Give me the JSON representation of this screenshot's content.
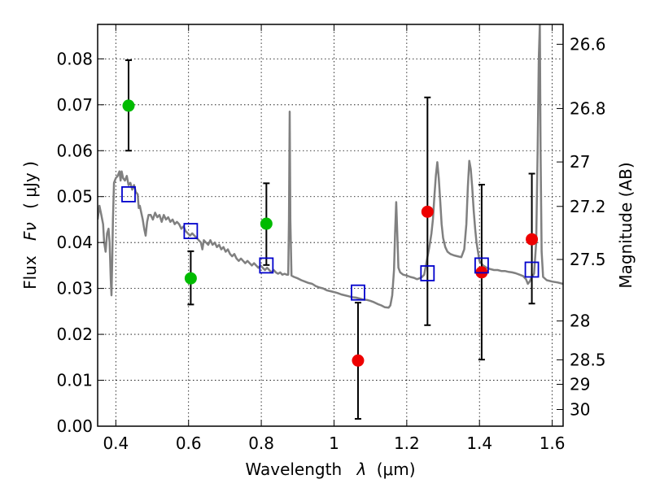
{
  "chart_data": {
    "type": "scatter",
    "xlabel": "Wavelength",
    "xlabel_symbol": "λ",
    "xlabel_unit": "(μm)",
    "ylabel": "Flux",
    "ylabel_symbol": "Fν",
    "ylabel_unit": "( μJy )",
    "ylabel_right": "Magnitude (AB)",
    "xlim": [
      0.35,
      1.63
    ],
    "ylim": [
      0.0,
      0.0875
    ],
    "grid": true,
    "x_ticks": [
      0.4,
      0.6,
      0.8,
      1.0,
      1.2,
      1.4,
      1.6
    ],
    "x_tick_labels": [
      "0.4",
      "0.6",
      "0.8",
      "1",
      "1.2",
      "1.4",
      "1.6"
    ],
    "y_ticks": [
      0.0,
      0.01,
      0.02,
      0.03,
      0.04,
      0.05,
      0.06,
      0.07,
      0.08
    ],
    "y_tick_labels": [
      "0.00",
      "0.01",
      "0.02",
      "0.03",
      "0.04",
      "0.05",
      "0.06",
      "0.07",
      "0.08"
    ],
    "right_ticks": [
      {
        "mag": 26.6,
        "label": "26.6"
      },
      {
        "mag": 26.8,
        "label": "26.8"
      },
      {
        "mag": 27.0,
        "label": "27"
      },
      {
        "mag": 27.2,
        "label": "27.2"
      },
      {
        "mag": 27.5,
        "label": "27.5"
      },
      {
        "mag": 28.0,
        "label": "28"
      },
      {
        "mag": 28.5,
        "label": "28.5"
      },
      {
        "mag": 29.0,
        "label": "29"
      },
      {
        "mag": 30.0,
        "label": "30"
      }
    ],
    "series": [
      {
        "kind": "points",
        "marker": "circle",
        "color": "#00bb00",
        "points": [
          {
            "x": 0.435,
            "y": 0.0698,
            "err_lo": 0.06,
            "err_hi": 0.0797
          },
          {
            "x": 0.606,
            "y": 0.0322,
            "err_lo": 0.0265,
            "err_hi": 0.0381
          },
          {
            "x": 0.814,
            "y": 0.0441,
            "err_lo": 0.0351,
            "err_hi": 0.0529
          }
        ]
      },
      {
        "kind": "points",
        "marker": "circle",
        "color": "#ee0000",
        "points": [
          {
            "x": 1.066,
            "y": 0.0143,
            "err_lo": 0.0016,
            "err_hi": 0.0269
          },
          {
            "x": 1.257,
            "y": 0.0467,
            "err_lo": 0.022,
            "err_hi": 0.0716
          },
          {
            "x": 1.406,
            "y": 0.0335,
            "err_lo": 0.0145,
            "err_hi": 0.0526
          },
          {
            "x": 1.544,
            "y": 0.0407,
            "err_lo": 0.0267,
            "err_hi": 0.055
          }
        ]
      },
      {
        "kind": "points",
        "marker": "square",
        "color": "#0000cc",
        "points": [
          {
            "x": 0.435,
            "y": 0.0505
          },
          {
            "x": 0.606,
            "y": 0.0425
          },
          {
            "x": 0.814,
            "y": 0.035
          },
          {
            "x": 1.066,
            "y": 0.0291
          },
          {
            "x": 1.257,
            "y": 0.0333
          },
          {
            "x": 1.406,
            "y": 0.035
          },
          {
            "x": 1.544,
            "y": 0.0341
          }
        ]
      },
      {
        "kind": "line",
        "color": "#808080",
        "points": [
          [
            0.35,
            0.045
          ],
          [
            0.355,
            0.048
          ],
          [
            0.36,
            0.046
          ],
          [
            0.365,
            0.044
          ],
          [
            0.368,
            0.04
          ],
          [
            0.372,
            0.038
          ],
          [
            0.376,
            0.042
          ],
          [
            0.38,
            0.043
          ],
          [
            0.383,
            0.04
          ],
          [
            0.386,
            0.032
          ],
          [
            0.388,
            0.0285
          ],
          [
            0.39,
            0.036
          ],
          [
            0.392,
            0.045
          ],
          [
            0.395,
            0.053
          ],
          [
            0.4,
            0.054
          ],
          [
            0.405,
            0.0545
          ],
          [
            0.41,
            0.0555
          ],
          [
            0.413,
            0.0535
          ],
          [
            0.416,
            0.0555
          ],
          [
            0.42,
            0.054
          ],
          [
            0.425,
            0.0535
          ],
          [
            0.43,
            0.0545
          ],
          [
            0.435,
            0.0525
          ],
          [
            0.44,
            0.053
          ],
          [
            0.445,
            0.0515
          ],
          [
            0.45,
            0.0525
          ],
          [
            0.455,
            0.051
          ],
          [
            0.46,
            0.0505
          ],
          [
            0.463,
            0.0475
          ],
          [
            0.466,
            0.048
          ],
          [
            0.47,
            0.0465
          ],
          [
            0.474,
            0.045
          ],
          [
            0.478,
            0.043
          ],
          [
            0.482,
            0.0415
          ],
          [
            0.486,
            0.0445
          ],
          [
            0.49,
            0.046
          ],
          [
            0.496,
            0.046
          ],
          [
            0.502,
            0.045
          ],
          [
            0.508,
            0.0465
          ],
          [
            0.514,
            0.0455
          ],
          [
            0.52,
            0.046
          ],
          [
            0.526,
            0.0445
          ],
          [
            0.532,
            0.046
          ],
          [
            0.538,
            0.045
          ],
          [
            0.544,
            0.0455
          ],
          [
            0.55,
            0.0445
          ],
          [
            0.556,
            0.045
          ],
          [
            0.562,
            0.044
          ],
          [
            0.568,
            0.0445
          ],
          [
            0.574,
            0.044
          ],
          [
            0.58,
            0.043
          ],
          [
            0.586,
            0.0435
          ],
          [
            0.592,
            0.0425
          ],
          [
            0.598,
            0.042
          ],
          [
            0.604,
            0.0415
          ],
          [
            0.61,
            0.042
          ],
          [
            0.616,
            0.0415
          ],
          [
            0.622,
            0.041
          ],
          [
            0.628,
            0.0405
          ],
          [
            0.634,
            0.04
          ],
          [
            0.638,
            0.0385
          ],
          [
            0.642,
            0.0405
          ],
          [
            0.648,
            0.04
          ],
          [
            0.654,
            0.0395
          ],
          [
            0.66,
            0.0405
          ],
          [
            0.666,
            0.0395
          ],
          [
            0.672,
            0.04
          ],
          [
            0.678,
            0.039
          ],
          [
            0.684,
            0.0395
          ],
          [
            0.69,
            0.0385
          ],
          [
            0.696,
            0.039
          ],
          [
            0.702,
            0.038
          ],
          [
            0.708,
            0.0385
          ],
          [
            0.714,
            0.0375
          ],
          [
            0.72,
            0.037
          ],
          [
            0.726,
            0.0375
          ],
          [
            0.732,
            0.0365
          ],
          [
            0.738,
            0.036
          ],
          [
            0.744,
            0.0365
          ],
          [
            0.75,
            0.036
          ],
          [
            0.756,
            0.0355
          ],
          [
            0.762,
            0.036
          ],
          [
            0.768,
            0.0355
          ],
          [
            0.774,
            0.035
          ],
          [
            0.78,
            0.0355
          ],
          [
            0.786,
            0.035
          ],
          [
            0.792,
            0.0345
          ],
          [
            0.798,
            0.035
          ],
          [
            0.804,
            0.0345
          ],
          [
            0.81,
            0.034
          ],
          [
            0.816,
            0.0345
          ],
          [
            0.822,
            0.034
          ],
          [
            0.828,
            0.0335
          ],
          [
            0.834,
            0.034
          ],
          [
            0.84,
            0.0335
          ],
          [
            0.846,
            0.0332
          ],
          [
            0.852,
            0.0335
          ],
          [
            0.858,
            0.033
          ],
          [
            0.864,
            0.0332
          ],
          [
            0.87,
            0.033
          ],
          [
            0.874,
            0.033
          ],
          [
            0.876,
            0.045
          ],
          [
            0.878,
            0.0685
          ],
          [
            0.88,
            0.045
          ],
          [
            0.883,
            0.0328
          ],
          [
            0.89,
            0.0325
          ],
          [
            0.9,
            0.0322
          ],
          [
            0.91,
            0.0318
          ],
          [
            0.92,
            0.0315
          ],
          [
            0.93,
            0.0312
          ],
          [
            0.94,
            0.031
          ],
          [
            0.95,
            0.0305
          ],
          [
            0.96,
            0.0302
          ],
          [
            0.97,
            0.03
          ],
          [
            0.98,
            0.0296
          ],
          [
            0.99,
            0.0294
          ],
          [
            1.0,
            0.0292
          ],
          [
            1.01,
            0.029
          ],
          [
            1.02,
            0.0287
          ],
          [
            1.03,
            0.0285
          ],
          [
            1.04,
            0.0283
          ],
          [
            1.05,
            0.0281
          ],
          [
            1.06,
            0.028
          ],
          [
            1.07,
            0.0278
          ],
          [
            1.08,
            0.0276
          ],
          [
            1.09,
            0.0275
          ],
          [
            1.1,
            0.0273
          ],
          [
            1.11,
            0.027
          ],
          [
            1.12,
            0.0266
          ],
          [
            1.13,
            0.0263
          ],
          [
            1.14,
            0.0259
          ],
          [
            1.15,
            0.0258
          ],
          [
            1.155,
            0.0263
          ],
          [
            1.16,
            0.0285
          ],
          [
            1.165,
            0.034
          ],
          [
            1.168,
            0.042
          ],
          [
            1.171,
            0.0488
          ],
          [
            1.174,
            0.042
          ],
          [
            1.177,
            0.0345
          ],
          [
            1.182,
            0.0335
          ],
          [
            1.19,
            0.033
          ],
          [
            1.2,
            0.0328
          ],
          [
            1.21,
            0.0325
          ],
          [
            1.22,
            0.0323
          ],
          [
            1.228,
            0.032
          ],
          [
            1.235,
            0.0322
          ],
          [
            1.242,
            0.0325
          ],
          [
            1.248,
            0.033
          ],
          [
            1.255,
            0.036
          ],
          [
            1.262,
            0.039
          ],
          [
            1.268,
            0.042
          ],
          [
            1.272,
            0.045
          ],
          [
            1.276,
            0.05
          ],
          [
            1.28,
            0.0545
          ],
          [
            1.284,
            0.0575
          ],
          [
            1.288,
            0.054
          ],
          [
            1.292,
            0.049
          ],
          [
            1.296,
            0.044
          ],
          [
            1.3,
            0.041
          ],
          [
            1.306,
            0.039
          ],
          [
            1.312,
            0.038
          ],
          [
            1.32,
            0.0375
          ],
          [
            1.33,
            0.0372
          ],
          [
            1.34,
            0.037
          ],
          [
            1.35,
            0.0368
          ],
          [
            1.358,
            0.0385
          ],
          [
            1.364,
            0.044
          ],
          [
            1.368,
            0.052
          ],
          [
            1.372,
            0.0578
          ],
          [
            1.376,
            0.056
          ],
          [
            1.38,
            0.052
          ],
          [
            1.384,
            0.047
          ],
          [
            1.388,
            0.043
          ],
          [
            1.392,
            0.04
          ],
          [
            1.4,
            0.036
          ],
          [
            1.41,
            0.035
          ],
          [
            1.42,
            0.0345
          ],
          [
            1.43,
            0.0342
          ],
          [
            1.44,
            0.034
          ],
          [
            1.45,
            0.034
          ],
          [
            1.46,
            0.0338
          ],
          [
            1.47,
            0.0338
          ],
          [
            1.48,
            0.0336
          ],
          [
            1.49,
            0.0335
          ],
          [
            1.5,
            0.0333
          ],
          [
            1.51,
            0.033
          ],
          [
            1.52,
            0.0327
          ],
          [
            1.528,
            0.032
          ],
          [
            1.533,
            0.031
          ],
          [
            1.538,
            0.0315
          ],
          [
            1.544,
            0.0325
          ],
          [
            1.55,
            0.0332
          ],
          [
            1.556,
            0.04
          ],
          [
            1.56,
            0.06
          ],
          [
            1.563,
            0.08
          ],
          [
            1.566,
            0.0875
          ],
          [
            1.568,
            0.06
          ],
          [
            1.571,
            0.038
          ],
          [
            1.575,
            0.0325
          ],
          [
            1.585,
            0.0318
          ],
          [
            1.6,
            0.0315
          ],
          [
            1.615,
            0.0313
          ],
          [
            1.63,
            0.031
          ]
        ]
      }
    ]
  }
}
